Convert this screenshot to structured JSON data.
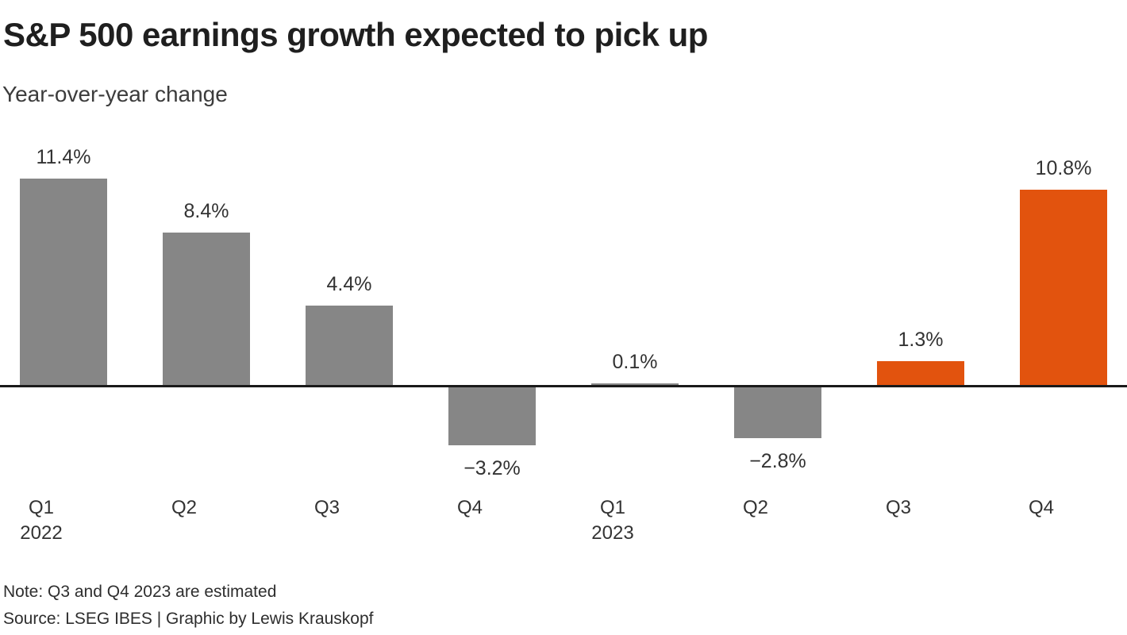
{
  "chart_data": {
    "type": "bar",
    "title": "S&P 500 earnings growth expected to pick up",
    "subtitle": "Year-over-year change",
    "unit": "percent year-over-year",
    "categories": [
      "Q1 2022",
      "Q2 2022",
      "Q3 2022",
      "Q4 2022",
      "Q1 2023",
      "Q2 2023",
      "Q3 2023",
      "Q4 2023"
    ],
    "values": [
      11.4,
      8.4,
      4.4,
      -3.2,
      0.1,
      -2.8,
      1.3,
      10.8
    ],
    "bars": [
      {
        "quarter": "Q1",
        "year_label": "2022",
        "value": 11.4,
        "label": "11.4%",
        "estimated": false
      },
      {
        "quarter": "Q2",
        "year_label": "",
        "value": 8.4,
        "label": "8.4%",
        "estimated": false
      },
      {
        "quarter": "Q3",
        "year_label": "",
        "value": 4.4,
        "label": "4.4%",
        "estimated": false
      },
      {
        "quarter": "Q4",
        "year_label": "",
        "value": -3.2,
        "label": "−3.2%",
        "estimated": false
      },
      {
        "quarter": "Q1",
        "year_label": "2023",
        "value": 0.1,
        "label": "0.1%",
        "estimated": false
      },
      {
        "quarter": "Q2",
        "year_label": "",
        "value": -2.8,
        "label": "−2.8%",
        "estimated": false
      },
      {
        "quarter": "Q3",
        "year_label": "",
        "value": 1.3,
        "label": "1.3%",
        "estimated": true
      },
      {
        "quarter": "Q4",
        "year_label": "",
        "value": 10.8,
        "label": "10.8%",
        "estimated": true
      }
    ],
    "colors": {
      "bar_default": "#868686",
      "bar_estimated": "#E2530E",
      "axis_line": "#1A1A1A",
      "title_text": "#1F1F1F",
      "label_text": "#333333"
    },
    "axis": {
      "baseline_value": 0,
      "grid": false,
      "legend": "none",
      "value_labels_shown": true,
      "y_axis_ticks_shown": false
    },
    "note": "Note: Q3 and Q4 2023 are estimated",
    "source": "Source: LSEG IBES | Graphic by Lewis Krauskopf"
  }
}
